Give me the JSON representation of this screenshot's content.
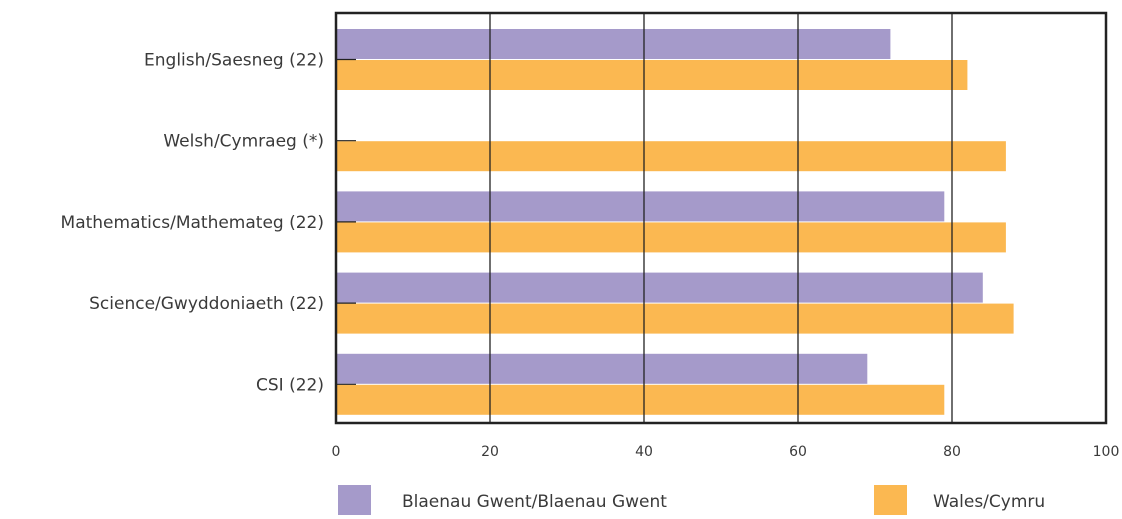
{
  "chart_data": {
    "type": "bar",
    "orientation": "horizontal",
    "categories": [
      "English/Saesneg (22)",
      "Welsh/Cymraeg (*)",
      "Mathematics/Mathemateg (22)",
      "Science/Gwyddoniaeth (22)",
      "CSI (22)"
    ],
    "series": [
      {
        "name": "Blaenau Gwent/Blaenau Gwent",
        "color": "#a59aca",
        "values": [
          72,
          null,
          79,
          84,
          69
        ]
      },
      {
        "name": "Wales/Cymru",
        "color": "#fbb851",
        "values": [
          82,
          87,
          87,
          88,
          79
        ]
      }
    ],
    "xlim": [
      0,
      100
    ],
    "xticks": [
      "0",
      "20",
      "40",
      "60",
      "80",
      "100"
    ],
    "grid": true,
    "legend_position": "bottom"
  }
}
